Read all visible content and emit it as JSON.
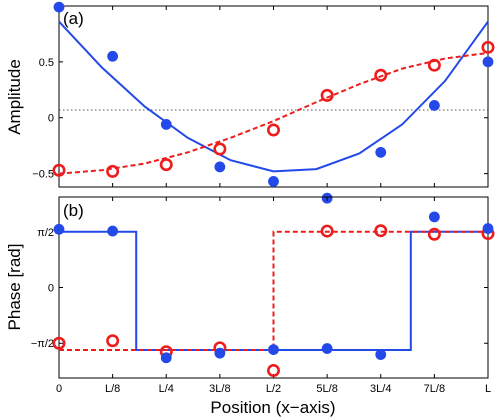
{
  "colors": {
    "blue": "#2349e8",
    "red": "#ee1d1d"
  },
  "xlabel": "Position (x−axis)",
  "xticks": [
    "0",
    "L/8",
    "L/4",
    "3L/8",
    "L/2",
    "5L/8",
    "3L/4",
    "7L/8",
    "L"
  ],
  "chart_data": [
    {
      "type": "scatter",
      "panel_label": "(a)",
      "ylabel": "Amplitude",
      "ylim": [
        -0.62,
        1.0
      ],
      "yticks": [
        {
          "value": 0.5,
          "label": "0.5"
        },
        {
          "value": 0,
          "label": "0"
        },
        {
          "value": -0.5,
          "label": "−0.5"
        }
      ],
      "x": [
        0,
        0.125,
        0.25,
        0.375,
        0.5,
        0.625,
        0.75,
        0.875,
        1
      ],
      "series": [
        {
          "marker": "filled-circle",
          "color": "blue",
          "values": [
            0.99,
            0.55,
            -0.06,
            -0.44,
            -0.57,
            -0.72,
            -0.31,
            0.11,
            0.5
          ]
        },
        {
          "marker": "open-circle",
          "color": "red",
          "values": [
            -0.47,
            -0.48,
            -0.42,
            -0.28,
            -0.11,
            0.2,
            0.38,
            0.47,
            0.63
          ]
        }
      ],
      "fits": [
        {
          "style": "solid",
          "color": "blue",
          "x": [
            0,
            0.1,
            0.2,
            0.3,
            0.4,
            0.5,
            0.6,
            0.7,
            0.8,
            0.9,
            1
          ],
          "values": [
            0.86,
            0.45,
            0.1,
            -0.18,
            -0.38,
            -0.48,
            -0.46,
            -0.32,
            -0.06,
            0.33,
            0.86
          ]
        },
        {
          "style": "dashed",
          "color": "red",
          "x": [
            0,
            0.1,
            0.2,
            0.3,
            0.4,
            0.5,
            0.6,
            0.7,
            0.8,
            0.9,
            1
          ],
          "values": [
            -0.5,
            -0.47,
            -0.41,
            -0.31,
            -0.18,
            -0.03,
            0.14,
            0.3,
            0.44,
            0.53,
            0.58
          ]
        }
      ]
    },
    {
      "type": "scatter",
      "panel_label": "(b)",
      "ylabel": "Phase [rad]",
      "ylim": [
        -2.55,
        2.55
      ],
      "yticks": [
        {
          "value": 1.5708,
          "label": "π/2"
        },
        {
          "value": 0,
          "label": "0"
        },
        {
          "value": -1.5708,
          "label": "−π/2"
        }
      ],
      "x": [
        0,
        0.125,
        0.25,
        0.375,
        0.5,
        0.625,
        0.75,
        0.875,
        1
      ],
      "series": [
        {
          "marker": "filled-circle",
          "color": "blue",
          "values": [
            1.64,
            1.59,
            -1.98,
            -1.85,
            -1.75,
            -1.72,
            -1.89,
            1.99,
            1.66
          ]
        },
        {
          "marker": "open-circle",
          "color": "red",
          "values": [
            -1.57,
            -1.5,
            -1.81,
            -1.7,
            -2.34,
            1.59,
            1.6,
            1.5,
            1.52
          ]
        }
      ],
      "fits": [
        {
          "style": "solid",
          "color": "blue",
          "x": [
            0,
            0.18,
            0.18,
            0.82,
            0.82,
            1
          ],
          "values": [
            1.5708,
            1.5708,
            -1.76,
            -1.76,
            1.5708,
            1.5708
          ]
        },
        {
          "style": "dashed",
          "color": "red",
          "x": [
            0,
            0.5,
            0.5,
            1
          ],
          "values": [
            -1.76,
            -1.76,
            1.5708,
            1.5708
          ]
        }
      ]
    }
  ]
}
